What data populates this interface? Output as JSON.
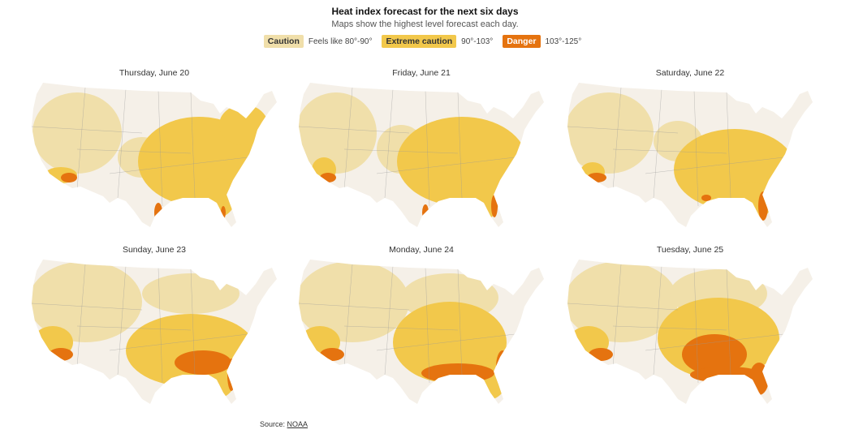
{
  "title": "Heat index forecast for the next six days",
  "subtitle": "Maps show the highest level forecast each day.",
  "legend": [
    {
      "label": "Caution",
      "range": "Feels like 80°-90°",
      "color": "#f0dfaa",
      "text_color": "#333333"
    },
    {
      "label": "Extreme caution",
      "range": "90°-103°",
      "color": "#f2c84b",
      "text_color": "#333333"
    },
    {
      "label": "Danger",
      "range": "103°-125°",
      "color": "#e5730f",
      "text_color": "#ffffff"
    }
  ],
  "base_color": "#f5f0e8",
  "maps": [
    {
      "label": "Thursday, June 20"
    },
    {
      "label": "Friday, June 21"
    },
    {
      "label": "Saturday, June 22"
    },
    {
      "label": "Sunday, June 23"
    },
    {
      "label": "Monday, June 24"
    },
    {
      "label": "Tuesday, June 25"
    }
  ],
  "source": {
    "prefix": "Source: ",
    "link": "NOAA"
  }
}
